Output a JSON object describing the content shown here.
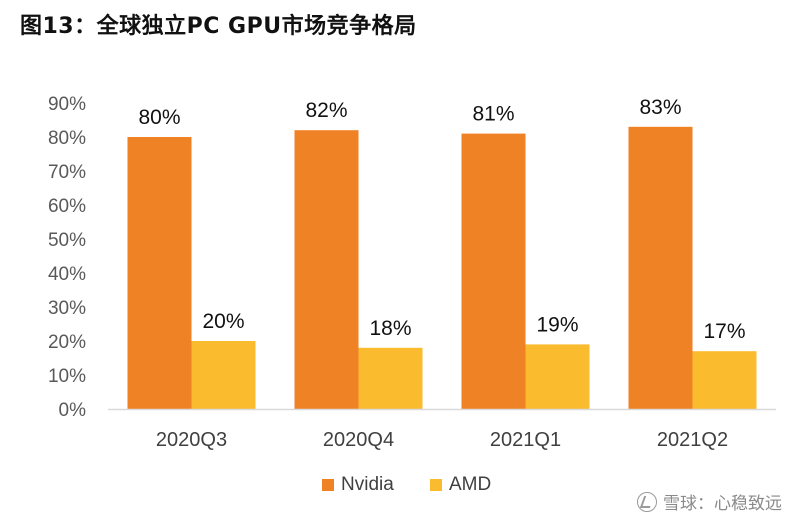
{
  "title": "图13：全球独立PC GPU市场竞争格局",
  "watermark": {
    "text": "雪球：心稳致远",
    "icon": "xueqiu-logo-icon"
  },
  "colors": {
    "nvidia": "#F08226",
    "amd": "#FBBB2E",
    "axis": "#D9D9D9"
  },
  "chart_data": {
    "type": "bar",
    "title": "全球独立PC GPU市场竞争格局",
    "categories": [
      "2020Q3",
      "2020Q4",
      "2021Q1",
      "2021Q2"
    ],
    "series": [
      {
        "name": "Nvidia",
        "values": [
          80,
          82,
          81,
          83
        ],
        "labels": [
          "80%",
          "82%",
          "81%",
          "83%"
        ]
      },
      {
        "name": "AMD",
        "values": [
          20,
          18,
          19,
          17
        ],
        "labels": [
          "20%",
          "18%",
          "19%",
          "17%"
        ]
      }
    ],
    "ylim": [
      0,
      90
    ],
    "yticks": [
      "0%",
      "10%",
      "20%",
      "30%",
      "40%",
      "50%",
      "60%",
      "70%",
      "80%",
      "90%"
    ],
    "xlabel": "",
    "ylabel": "",
    "grid": false,
    "legend": "bottom-center"
  }
}
